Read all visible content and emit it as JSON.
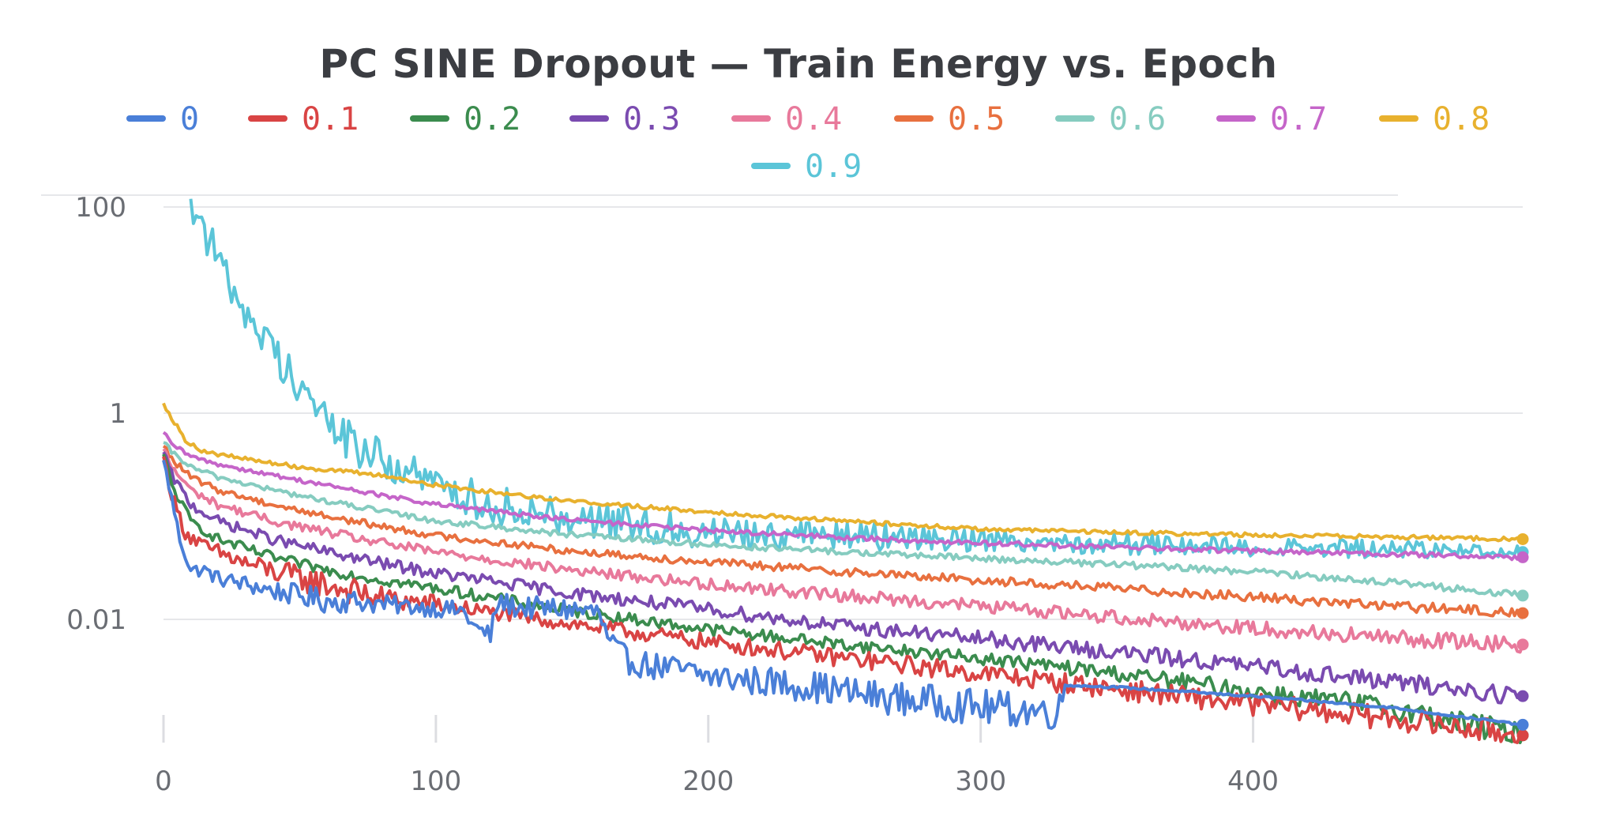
{
  "chart_data": {
    "type": "line",
    "title": "PC SINE Dropout — Train Energy vs. Epoch",
    "xlabel": "",
    "ylabel": "",
    "y_scale": "log",
    "xlim": [
      0,
      499
    ],
    "ylim": [
      0.0008,
      150
    ],
    "x_ticks": [
      "0",
      "100",
      "200",
      "300",
      "400"
    ],
    "y_ticks": [
      "100",
      "1",
      "0.01"
    ],
    "grid": true,
    "legend_position": "top-center",
    "series": [
      {
        "name": "0",
        "color": "#4a7fd8",
        "anchors": [
          [
            0,
            0.35
          ],
          [
            3,
            0.15
          ],
          [
            6,
            0.06
          ],
          [
            10,
            0.03
          ],
          [
            15,
            0.03
          ],
          [
            20,
            0.025
          ],
          [
            30,
            0.022
          ],
          [
            40,
            0.019
          ],
          [
            50,
            0.017
          ],
          [
            60,
            0.015
          ],
          [
            70,
            0.015
          ],
          [
            80,
            0.014
          ],
          [
            100,
            0.0128
          ],
          [
            110,
            0.012
          ],
          [
            115,
            0.008
          ],
          [
            120,
            0.007
          ],
          [
            123,
            0.015
          ],
          [
            130,
            0.013
          ],
          [
            150,
            0.0125
          ],
          [
            160,
            0.0115
          ],
          [
            163,
            0.0062
          ],
          [
            170,
            0.004
          ],
          [
            180,
            0.0035
          ],
          [
            190,
            0.0032
          ],
          [
            200,
            0.0028
          ],
          [
            220,
            0.0025
          ],
          [
            240,
            0.0022
          ],
          [
            260,
            0.0018
          ],
          [
            280,
            0.0016
          ],
          [
            300,
            0.0014
          ],
          [
            320,
            0.0013
          ],
          [
            329,
            0.0013
          ],
          [
            331,
            0.0023
          ],
          [
            350,
            0.0022
          ],
          [
            400,
            0.0018
          ],
          [
            450,
            0.0014
          ],
          [
            499,
            0.00095
          ]
        ],
        "noise": [
          [
            0,
            0.05
          ],
          [
            60,
            0.12
          ],
          [
            90,
            0.08
          ],
          [
            165,
            0.13
          ],
          [
            329,
            0.18
          ],
          [
            331,
            0.01
          ],
          [
            499,
            0.01
          ]
        ]
      },
      {
        "name": "0.1",
        "color": "#d94444",
        "anchors": [
          [
            0,
            0.38
          ],
          [
            3,
            0.16
          ],
          [
            8,
            0.07
          ],
          [
            15,
            0.05
          ],
          [
            30,
            0.035
          ],
          [
            50,
            0.025
          ],
          [
            80,
            0.016
          ],
          [
            100,
            0.014
          ],
          [
            150,
            0.009
          ],
          [
            200,
            0.006
          ],
          [
            250,
            0.0042
          ],
          [
            300,
            0.003
          ],
          [
            350,
            0.0021
          ],
          [
            400,
            0.0015
          ],
          [
            450,
            0.0011
          ],
          [
            499,
            0.00075
          ]
        ],
        "noise": [
          [
            0,
            0.06
          ],
          [
            60,
            0.14
          ],
          [
            120,
            0.07
          ],
          [
            499,
            0.12
          ]
        ]
      },
      {
        "name": "0.2",
        "color": "#3b8c4e",
        "anchors": [
          [
            0,
            0.4
          ],
          [
            3,
            0.2
          ],
          [
            10,
            0.09
          ],
          [
            20,
            0.06
          ],
          [
            40,
            0.04
          ],
          [
            60,
            0.03
          ],
          [
            80,
            0.024
          ],
          [
            100,
            0.02
          ],
          [
            150,
            0.012
          ],
          [
            200,
            0.008
          ],
          [
            250,
            0.0057
          ],
          [
            300,
            0.0042
          ],
          [
            350,
            0.003
          ],
          [
            400,
            0.002
          ],
          [
            450,
            0.0014
          ],
          [
            499,
            0.00075
          ]
        ],
        "noise": [
          [
            0,
            0.05
          ],
          [
            300,
            0.06
          ],
          [
            499,
            0.12
          ]
        ]
      },
      {
        "name": "0.3",
        "color": "#7a4bb0",
        "anchors": [
          [
            0,
            0.42
          ],
          [
            3,
            0.25
          ],
          [
            10,
            0.13
          ],
          [
            20,
            0.09
          ],
          [
            40,
            0.06
          ],
          [
            60,
            0.045
          ],
          [
            80,
            0.035
          ],
          [
            100,
            0.028
          ],
          [
            150,
            0.018
          ],
          [
            200,
            0.0125
          ],
          [
            250,
            0.0085
          ],
          [
            300,
            0.0065
          ],
          [
            350,
            0.0048
          ],
          [
            400,
            0.0035
          ],
          [
            450,
            0.0025
          ],
          [
            499,
            0.0018
          ]
        ],
        "noise": [
          [
            0,
            0.05
          ],
          [
            499,
            0.09
          ]
        ]
      },
      {
        "name": "0.4",
        "color": "#e8799b",
        "anchors": [
          [
            0,
            0.45
          ],
          [
            3,
            0.3
          ],
          [
            10,
            0.18
          ],
          [
            20,
            0.13
          ],
          [
            40,
            0.09
          ],
          [
            60,
            0.07
          ],
          [
            80,
            0.055
          ],
          [
            100,
            0.045
          ],
          [
            150,
            0.03
          ],
          [
            200,
            0.022
          ],
          [
            250,
            0.017
          ],
          [
            300,
            0.0135
          ],
          [
            350,
            0.0105
          ],
          [
            400,
            0.0082
          ],
          [
            450,
            0.0066
          ],
          [
            499,
            0.0057
          ]
        ],
        "noise": [
          [
            0,
            0.04
          ],
          [
            499,
            0.08
          ]
        ]
      },
      {
        "name": "0.5",
        "color": "#e8703f",
        "anchors": [
          [
            0,
            0.48
          ],
          [
            3,
            0.36
          ],
          [
            10,
            0.24
          ],
          [
            20,
            0.18
          ],
          [
            40,
            0.13
          ],
          [
            60,
            0.1
          ],
          [
            80,
            0.08
          ],
          [
            100,
            0.065
          ],
          [
            150,
            0.046
          ],
          [
            200,
            0.036
          ],
          [
            250,
            0.029
          ],
          [
            300,
            0.024
          ],
          [
            350,
            0.02
          ],
          [
            400,
            0.0165
          ],
          [
            450,
            0.0135
          ],
          [
            499,
            0.0115
          ]
        ],
        "noise": [
          [
            0,
            0.03
          ],
          [
            499,
            0.05
          ]
        ]
      },
      {
        "name": "0.6",
        "color": "#86ccc0",
        "anchors": [
          [
            0,
            0.52
          ],
          [
            3,
            0.42
          ],
          [
            10,
            0.3
          ],
          [
            20,
            0.24
          ],
          [
            40,
            0.18
          ],
          [
            60,
            0.14
          ],
          [
            80,
            0.112
          ],
          [
            100,
            0.09
          ],
          [
            150,
            0.066
          ],
          [
            200,
            0.053
          ],
          [
            250,
            0.045
          ],
          [
            300,
            0.039
          ],
          [
            350,
            0.034
          ],
          [
            400,
            0.029
          ],
          [
            450,
            0.023
          ],
          [
            499,
            0.017
          ]
        ],
        "noise": [
          [
            0,
            0.025
          ],
          [
            499,
            0.035
          ]
        ]
      },
      {
        "name": "0.7",
        "color": "#c565c9",
        "anchors": [
          [
            0,
            0.65
          ],
          [
            3,
            0.5
          ],
          [
            10,
            0.38
          ],
          [
            20,
            0.32
          ],
          [
            40,
            0.25
          ],
          [
            60,
            0.2
          ],
          [
            80,
            0.16
          ],
          [
            100,
            0.13
          ],
          [
            150,
            0.092
          ],
          [
            200,
            0.073
          ],
          [
            250,
            0.062
          ],
          [
            300,
            0.055
          ],
          [
            350,
            0.05
          ],
          [
            400,
            0.046
          ],
          [
            450,
            0.043
          ],
          [
            499,
            0.04
          ]
        ],
        "noise": [
          [
            0,
            0.02
          ],
          [
            499,
            0.025
          ]
        ]
      },
      {
        "name": "0.8",
        "color": "#e8b12e",
        "anchors": [
          [
            0,
            1.25
          ],
          [
            3,
            0.9
          ],
          [
            8,
            0.55
          ],
          [
            15,
            0.42
          ],
          [
            30,
            0.36
          ],
          [
            50,
            0.3
          ],
          [
            80,
            0.25
          ],
          [
            100,
            0.2
          ],
          [
            150,
            0.14
          ],
          [
            200,
            0.11
          ],
          [
            250,
            0.09
          ],
          [
            300,
            0.075
          ],
          [
            350,
            0.07
          ],
          [
            400,
            0.066
          ],
          [
            450,
            0.063
          ],
          [
            499,
            0.06
          ]
        ],
        "noise": [
          [
            0,
            0.02
          ],
          [
            499,
            0.02
          ]
        ]
      },
      {
        "name": "0.9",
        "color": "#5bc5d8",
        "anchors": [
          [
            10,
            120
          ],
          [
            15,
            60
          ],
          [
            20,
            30
          ],
          [
            30,
            10
          ],
          [
            40,
            4
          ],
          [
            50,
            2
          ],
          [
            60,
            0.8
          ],
          [
            70,
            0.5
          ],
          [
            80,
            0.35
          ],
          [
            100,
            0.2
          ],
          [
            120,
            0.13
          ],
          [
            150,
            0.1
          ],
          [
            170,
            0.085
          ],
          [
            200,
            0.07
          ],
          [
            250,
            0.065
          ],
          [
            300,
            0.06
          ],
          [
            350,
            0.055
          ],
          [
            400,
            0.05
          ],
          [
            450,
            0.048
          ],
          [
            499,
            0.045
          ]
        ],
        "noise": [
          [
            10,
            0.2
          ],
          [
            100,
            0.2
          ],
          [
            200,
            0.16
          ],
          [
            300,
            0.12
          ],
          [
            499,
            0.07
          ]
        ]
      }
    ]
  }
}
